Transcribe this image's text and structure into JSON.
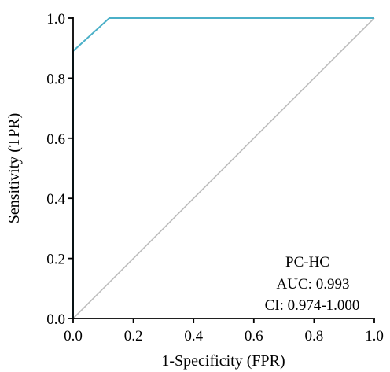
{
  "chart_data": {
    "type": "line",
    "title": "",
    "xlabel": "1-Specificity (FPR)",
    "ylabel": "Sensitivity (TPR)",
    "xlim": [
      0,
      1
    ],
    "ylim": [
      0,
      1
    ],
    "x_ticks": [
      0.0,
      0.2,
      0.4,
      0.6,
      0.8,
      1.0
    ],
    "x_tick_labels": [
      "0.0",
      "0.2",
      "0.4",
      "0.6",
      "0.8",
      "1.0"
    ],
    "y_ticks": [
      0.0,
      0.2,
      0.4,
      0.6,
      0.8,
      1.0
    ],
    "y_tick_labels": [
      "0.0",
      "0.2",
      "0.4",
      "0.6",
      "0.8",
      "1.0"
    ],
    "grid": false,
    "series": [
      {
        "role": "roc-curve",
        "color": "#4bb0c8",
        "x": [
          0.0,
          0.0,
          0.12,
          1.0
        ],
        "y": [
          0.0,
          0.89,
          1.0,
          1.0
        ]
      },
      {
        "role": "reference-diagonal",
        "color": "#bdbdbd",
        "x": [
          0.0,
          1.0
        ],
        "y": [
          0.0,
          1.0
        ]
      }
    ],
    "annotations": [
      "PC-HC",
      "AUC: 0.993",
      "CI: 0.974-1.000"
    ]
  }
}
